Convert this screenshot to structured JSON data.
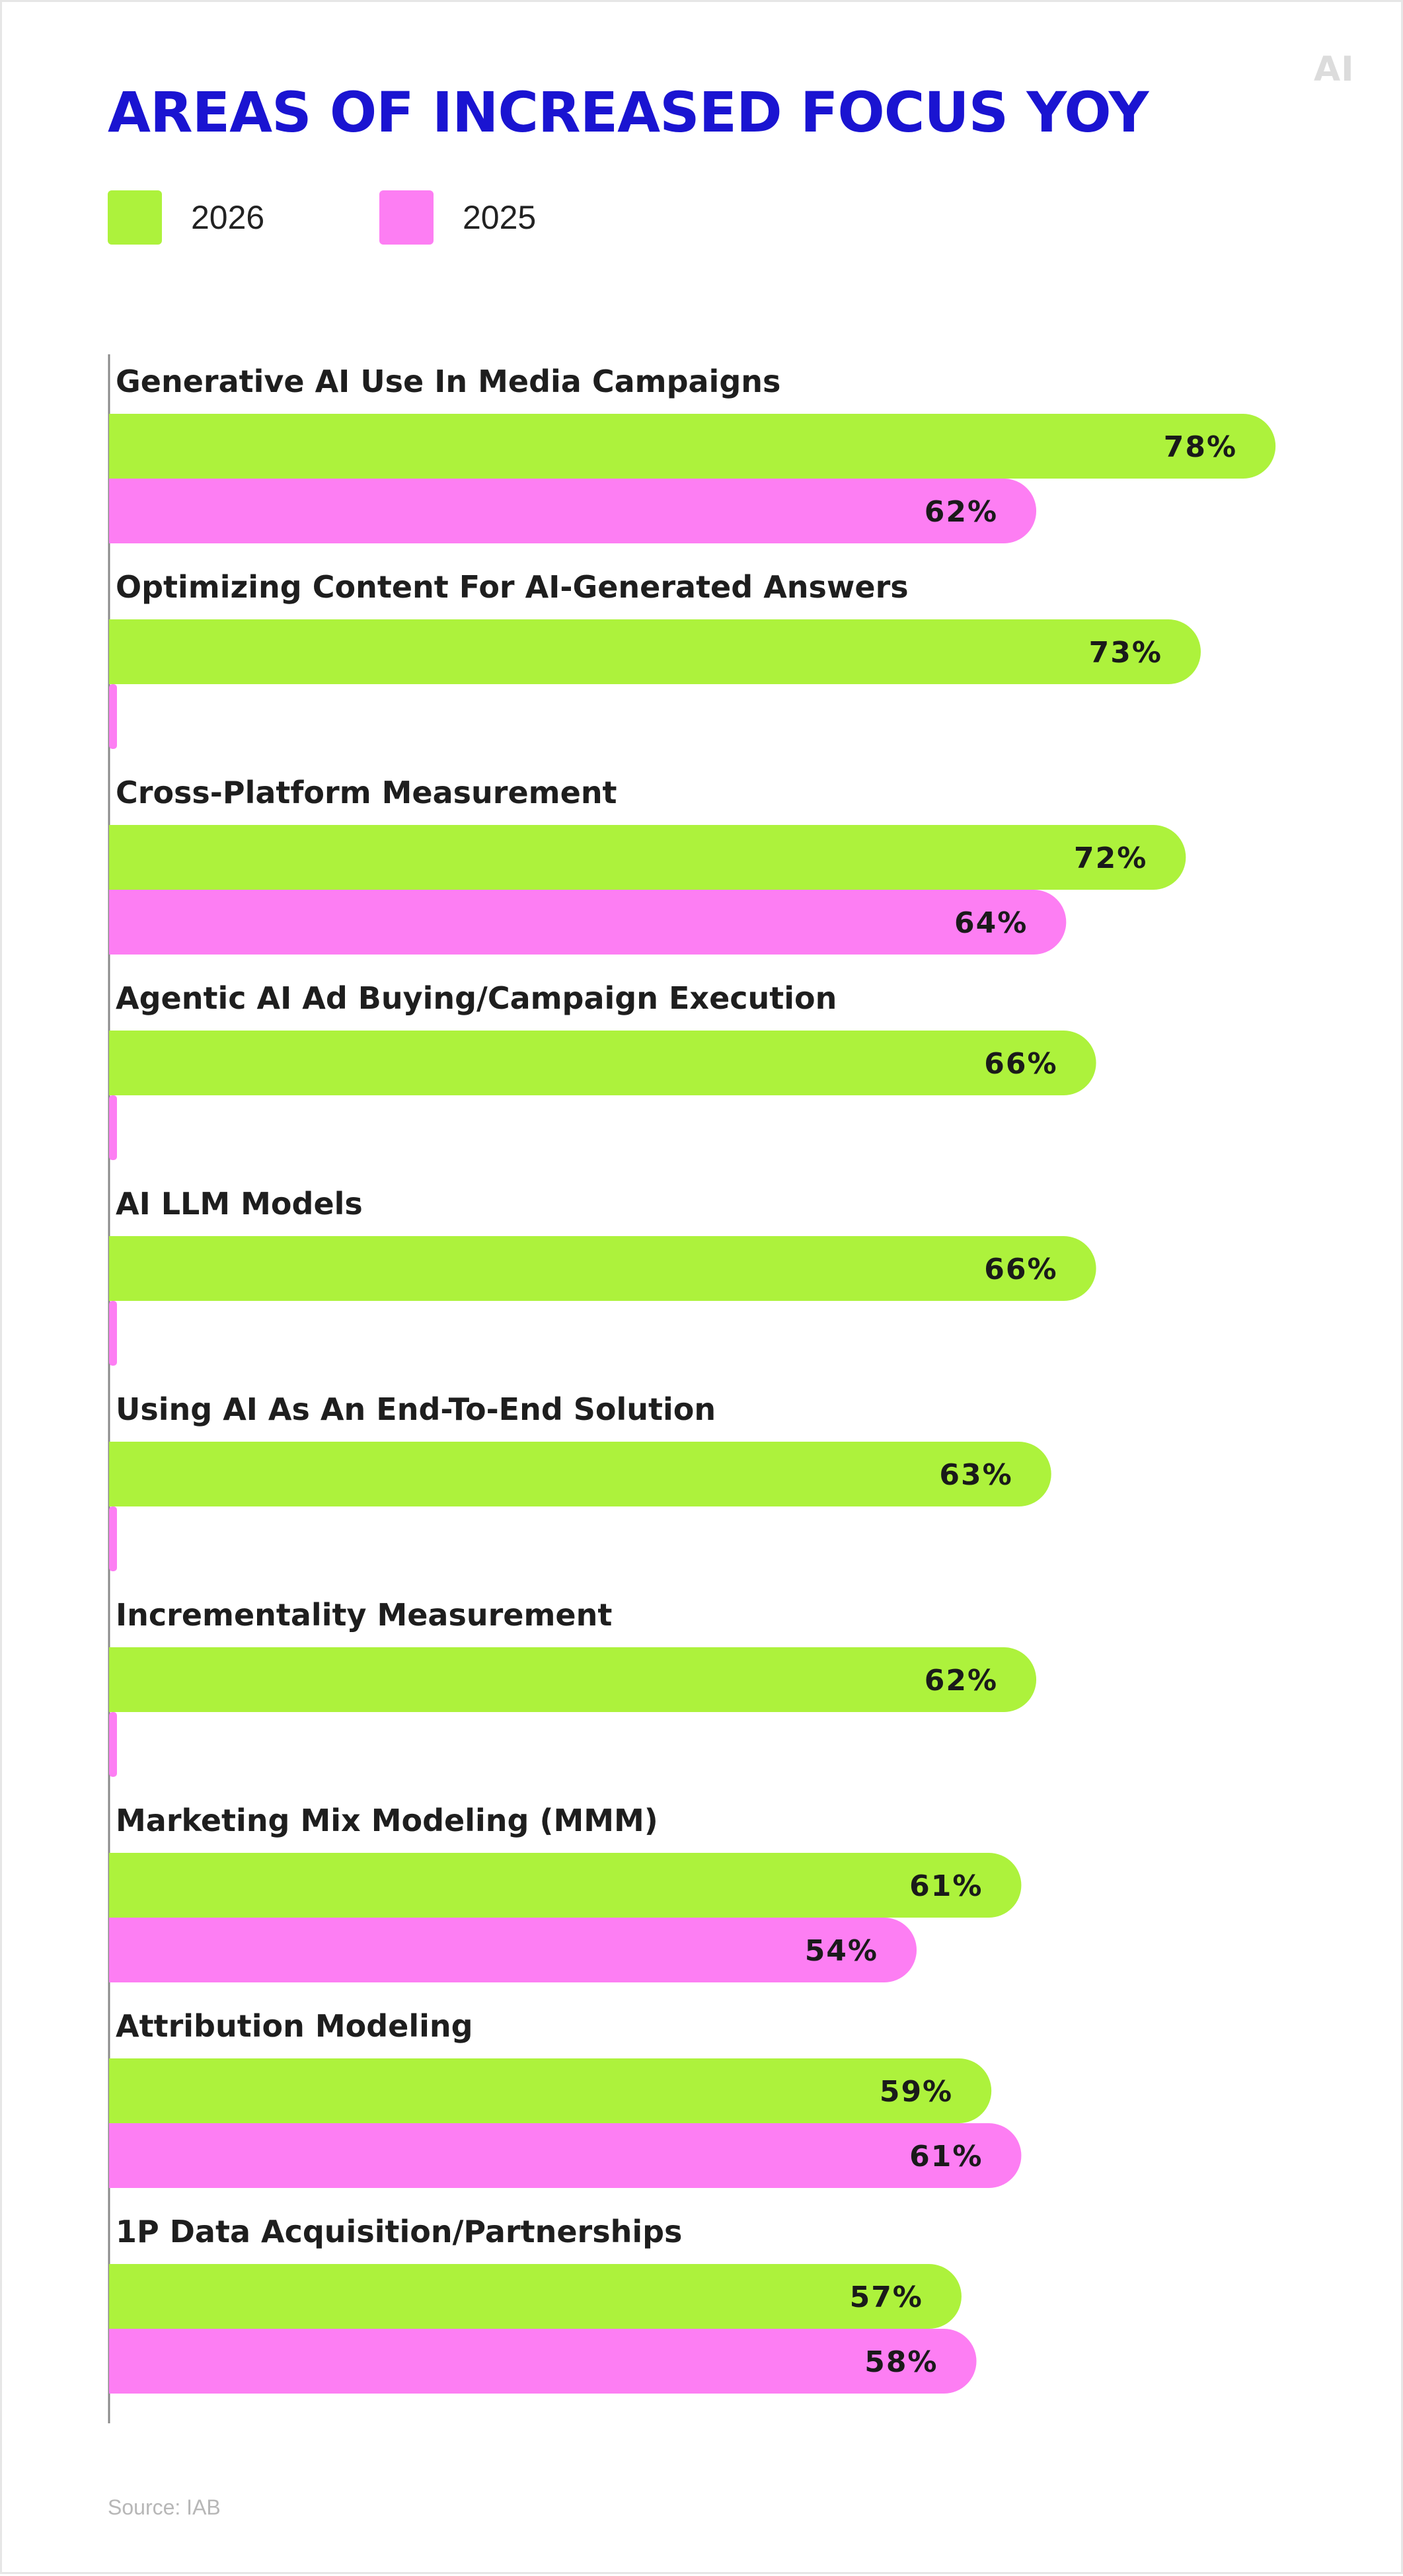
{
  "watermark": "AI",
  "source": "Source: IAB",
  "chart_data": {
    "type": "bar",
    "orientation": "horizontal",
    "title": "AREAS OF INCREASED FOCUS YOY",
    "categories": [
      "Generative AI Use In Media Campaigns",
      "Optimizing Content For AI-Generated Answers",
      "Cross-Platform Measurement",
      "Agentic AI Ad Buying/Campaign Execution",
      "AI LLM Models",
      "Using AI As An End-To-End Solution",
      "Incrementality Measurement",
      "Marketing Mix Modeling (MMM)",
      "Attribution Modeling",
      "1P Data Acquisition/Partnerships"
    ],
    "series": [
      {
        "name": "2026",
        "color": "#adf23c",
        "values": [
          78,
          73,
          72,
          66,
          66,
          63,
          62,
          61,
          59,
          57
        ]
      },
      {
        "name": "2025",
        "color": "#fd7ef3",
        "values": [
          62,
          null,
          64,
          null,
          null,
          null,
          null,
          54,
          61,
          58
        ]
      }
    ],
    "value_suffix": "%",
    "xlim": [
      0,
      100
    ],
    "legend": "top-left",
    "grid": false
  }
}
